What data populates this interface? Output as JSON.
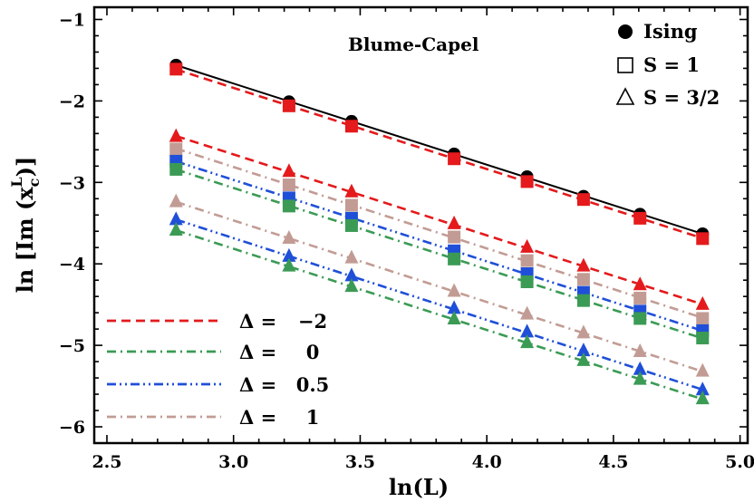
{
  "chart_data": {
    "type": "scatter",
    "title": "Blume-Capel",
    "xlabel": "ln(L)",
    "ylabel": "ln [Im (x_c^L)]",
    "xlim": [
      2.45,
      5.03
    ],
    "ylim": [
      -6.2,
      -0.85
    ],
    "x_ticks": [
      2.5,
      3.0,
      3.5,
      4.0,
      4.5,
      5.0
    ],
    "x_tick_labels": [
      "2.5",
      "3.0",
      "3.5",
      "4.0",
      "4.5",
      "5.0"
    ],
    "y_ticks": [
      -6,
      -5,
      -4,
      -3,
      -2,
      -1
    ],
    "y_tick_labels": [
      "−6",
      "−5",
      "−4",
      "−3",
      "−2",
      "−1"
    ],
    "x": [
      2.773,
      3.219,
      3.466,
      3.871,
      4.159,
      4.382,
      4.605,
      4.852
    ],
    "marker_legend": [
      {
        "label": "Ising",
        "marker": "circle-filled"
      },
      {
        "label": "S = 1",
        "marker": "square-open"
      },
      {
        "label": "S = 3/2",
        "marker": "triangle-open"
      }
    ],
    "line_legend": [
      {
        "label_prefix": "Δ =",
        "label_value": "−2",
        "color": "#e41a1c",
        "dash": "dashed"
      },
      {
        "label_prefix": "Δ =",
        "label_value": "0",
        "color": "#3b9b55",
        "dash": "dash-dot"
      },
      {
        "label_prefix": "Δ =",
        "label_value": "0.5",
        "color": "#1f4fd8",
        "dash": "dash-dot-dot"
      },
      {
        "label_prefix": "Δ =",
        "label_value": "1",
        "color": "#c29c94",
        "dash": "dash-dot"
      }
    ],
    "series": [
      {
        "family": "Ising",
        "marker": "circle",
        "color": "#000000",
        "dash": "solid",
        "values": [
          -1.56,
          -2.01,
          -2.25,
          -2.65,
          -2.93,
          -3.17,
          -3.39,
          -3.63
        ]
      },
      {
        "family": "S=1",
        "delta": "-2",
        "marker": "square",
        "color": "#e41a1c",
        "dash": "dashed",
        "values": [
          -1.61,
          -2.06,
          -2.31,
          -2.71,
          -2.99,
          -3.21,
          -3.44,
          -3.69
        ]
      },
      {
        "family": "S=3/2",
        "delta": "-2",
        "marker": "triangle",
        "color": "#e41a1c",
        "dash": "dashed",
        "values": [
          -2.44,
          -2.87,
          -3.12,
          -3.51,
          -3.8,
          -4.03,
          -4.26,
          -4.5
        ]
      },
      {
        "family": "S=1",
        "delta": "1",
        "marker": "square",
        "color": "#c29c94",
        "dash": "dash-dot",
        "values": [
          -2.59,
          -3.03,
          -3.28,
          -3.67,
          -3.96,
          -4.19,
          -4.42,
          -4.67
        ]
      },
      {
        "family": "S=1",
        "delta": "0.5",
        "marker": "square",
        "color": "#1f4fd8",
        "dash": "dash-dot-dot",
        "values": [
          -2.74,
          -3.19,
          -3.44,
          -3.84,
          -4.12,
          -4.35,
          -4.58,
          -4.82
        ]
      },
      {
        "family": "S=1",
        "delta": "0",
        "marker": "square",
        "color": "#3b9b55",
        "dash": "dash-dot",
        "values": [
          -2.84,
          -3.29,
          -3.53,
          -3.94,
          -4.22,
          -4.45,
          -4.67,
          -4.91
        ]
      },
      {
        "family": "S=3/2",
        "delta": "1",
        "marker": "triangle",
        "color": "#c29c94",
        "dash": "dash-dot",
        "values": [
          -3.24,
          -3.69,
          -3.93,
          -4.34,
          -4.62,
          -4.85,
          -5.08,
          -5.32
        ]
      },
      {
        "family": "S=3/2",
        "delta": "0.5",
        "marker": "triangle",
        "color": "#1f4fd8",
        "dash": "dash-dot-dot",
        "values": [
          -3.46,
          -3.91,
          -4.15,
          -4.55,
          -4.84,
          -5.07,
          -5.3,
          -5.55
        ]
      },
      {
        "family": "S=3/2",
        "delta": "0",
        "marker": "triangle",
        "color": "#3b9b55",
        "dash": "dash-dot",
        "values": [
          -3.59,
          -4.03,
          -4.28,
          -4.68,
          -4.97,
          -5.19,
          -5.42,
          -5.66
        ]
      }
    ]
  }
}
